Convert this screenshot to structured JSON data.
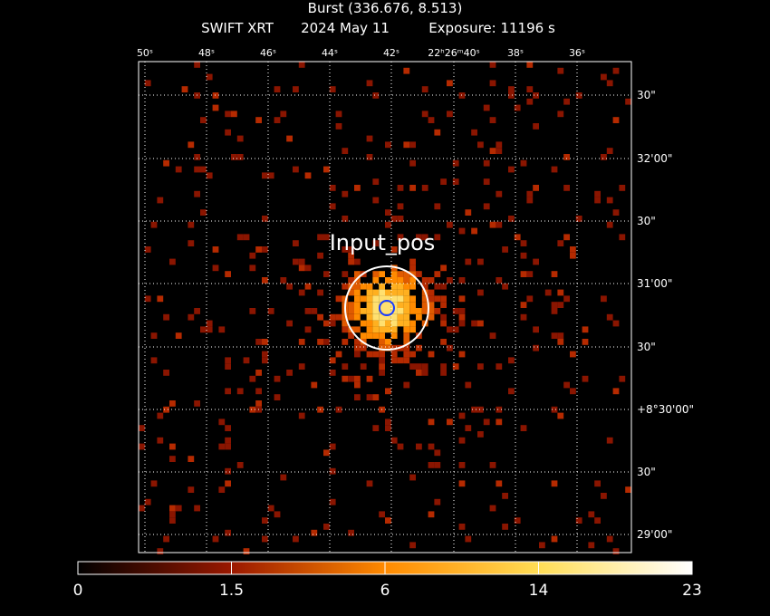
{
  "header": {
    "title": "Burst (336.676, 8.513)",
    "instrument": "SWIFT XRT",
    "date": "2024 May 11",
    "exposure": "Exposure: 11196 s"
  },
  "axes": {
    "top_labels": [
      "50ˢ",
      "48ˢ",
      "46ˢ",
      "44ˢ",
      "42ˢ",
      "22ʰ26ᵐ40ˢ",
      "38ˢ",
      "36ˢ"
    ],
    "right_labels": [
      "30\"",
      "32'00\"",
      "30\"",
      "31'00\"",
      "30\"",
      "+8°30'00\"",
      "30\"",
      "29'00\""
    ]
  },
  "annotation": "Input_pos",
  "colorbar": {
    "ticks": [
      0,
      1.5,
      6,
      14,
      23
    ]
  }
}
